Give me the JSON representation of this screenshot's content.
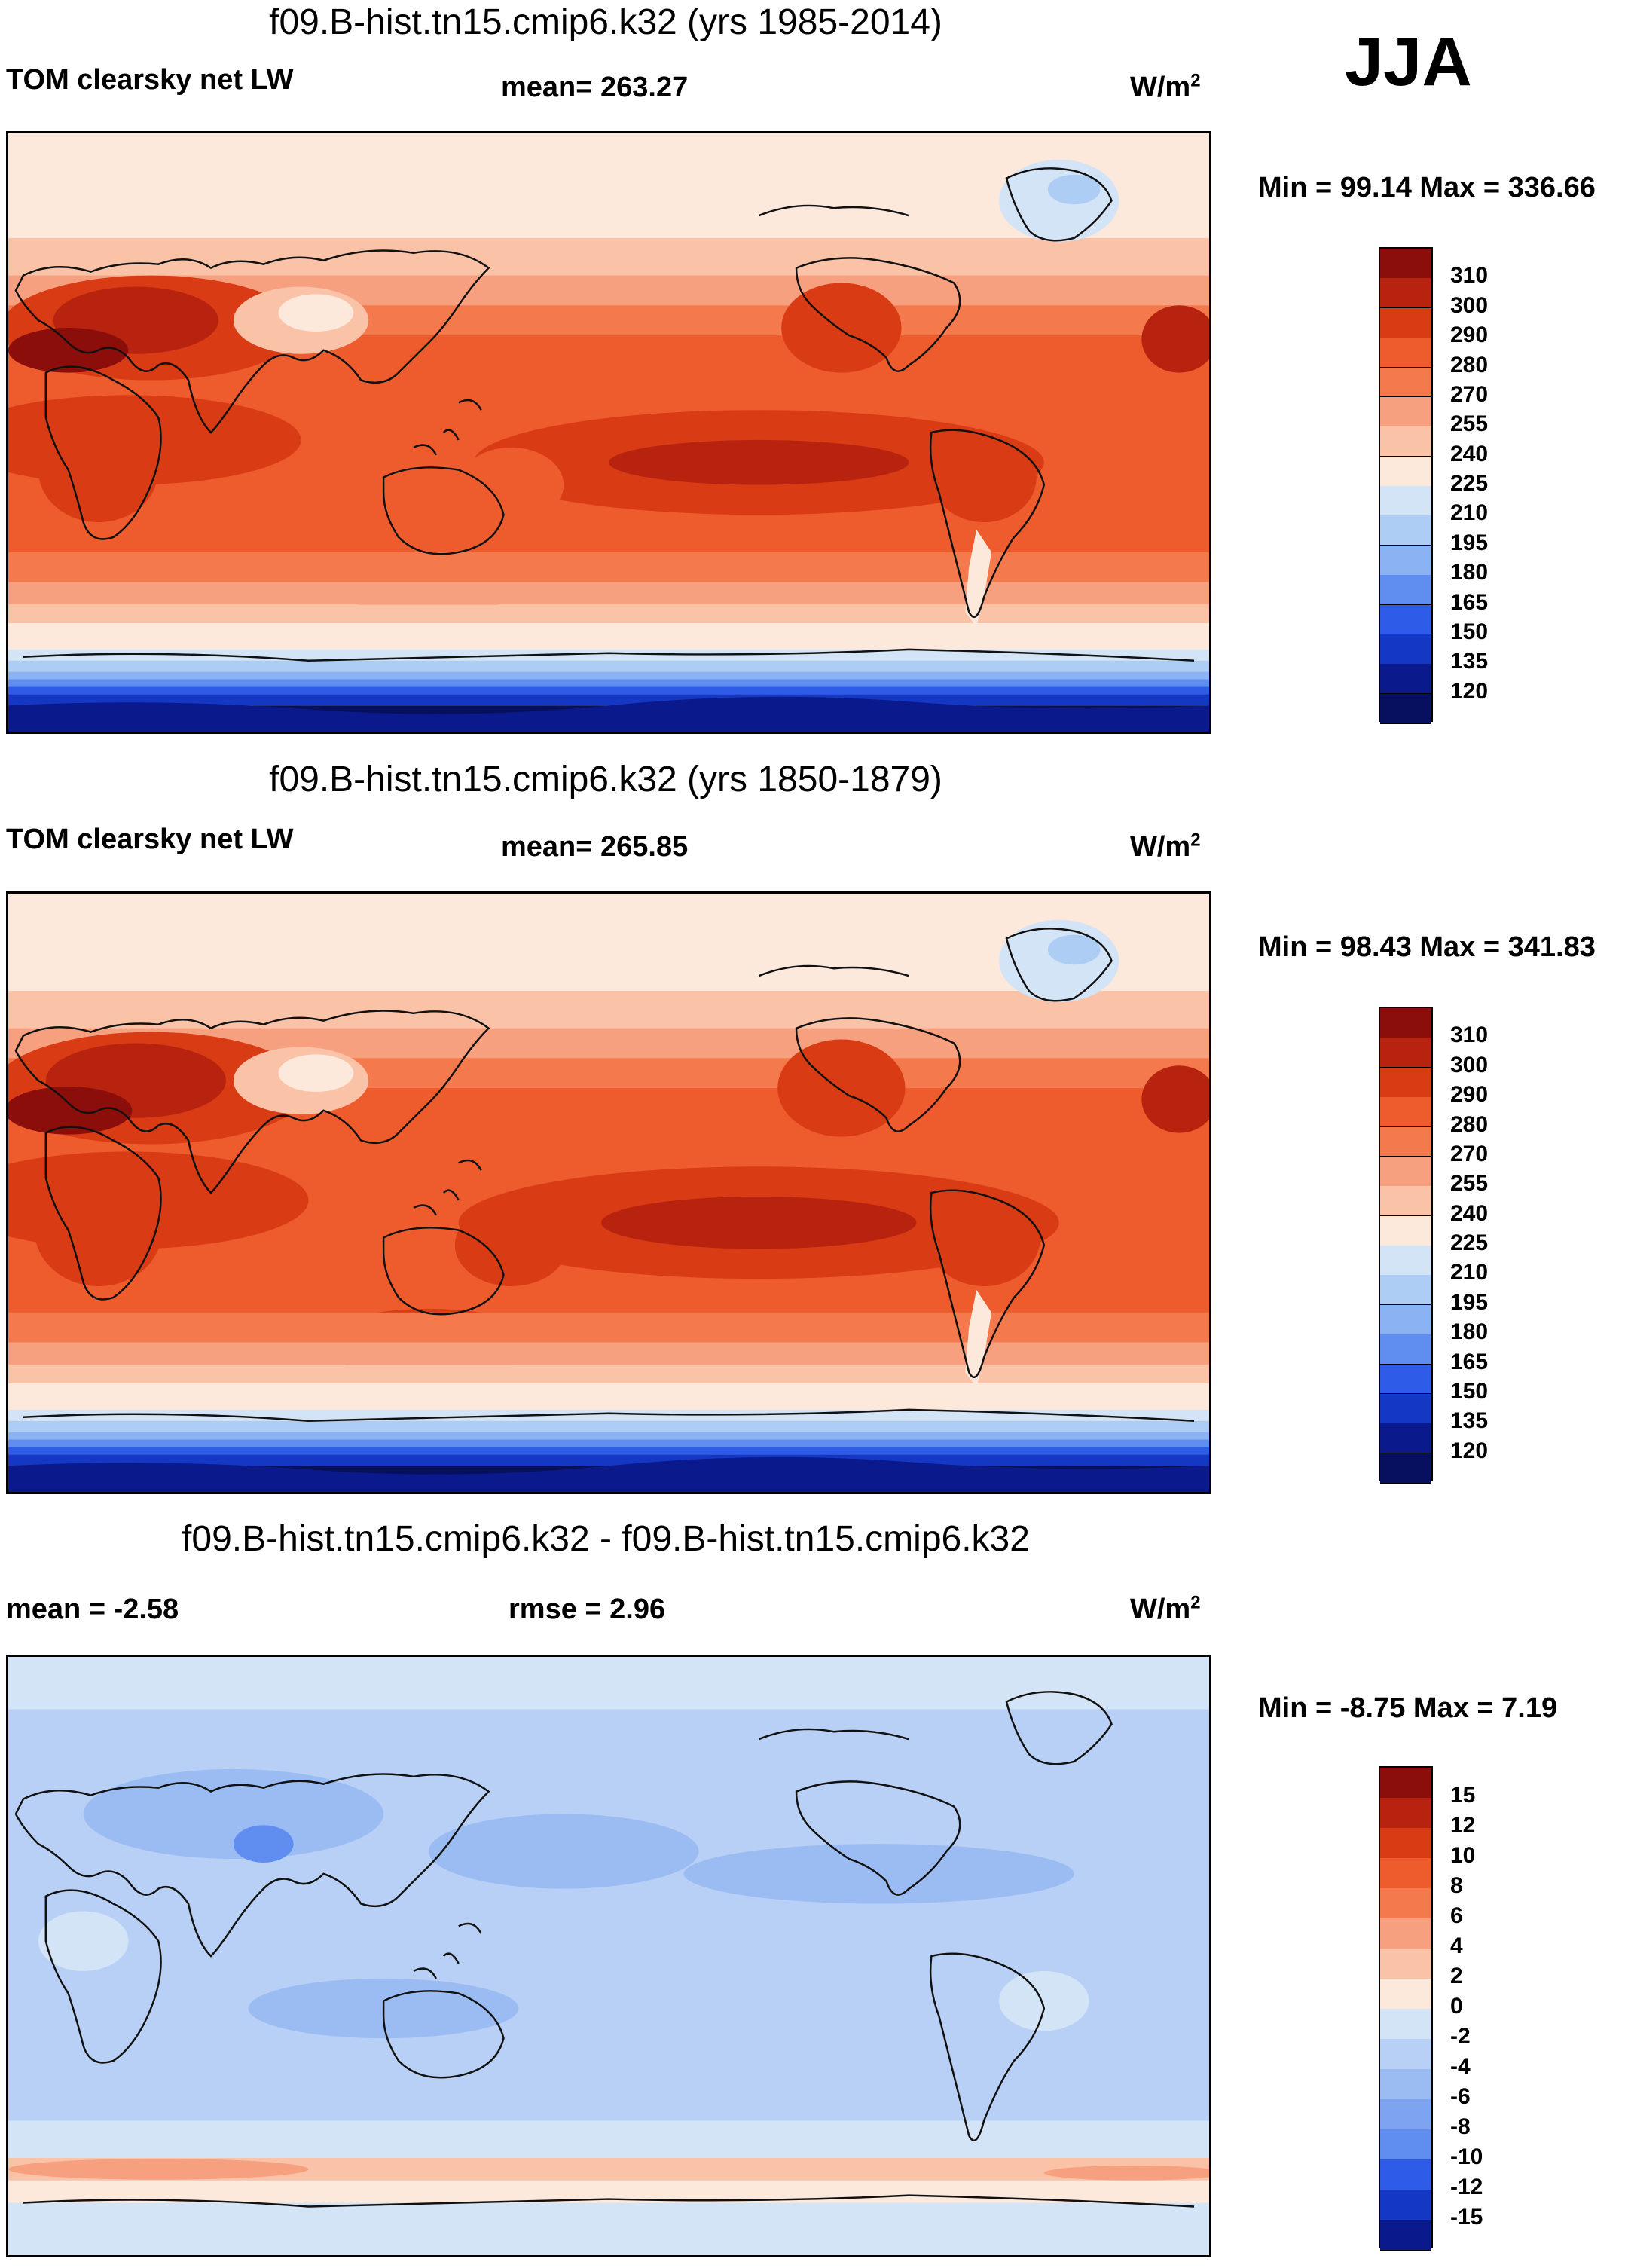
{
  "season": "JJA",
  "panels": [
    {
      "title": "f09.B-hist.tn15.cmip6.k32 (yrs 1985-2014)",
      "left_label": "TOM clearsky net LW",
      "center_label": "mean= 263.27",
      "units": "W/m",
      "units_exp": "2",
      "minmax": "Min =  99.14 Max = 336.66",
      "levels": [
        "310",
        "300",
        "290",
        "280",
        "270",
        "255",
        "240",
        "225",
        "210",
        "195",
        "180",
        "165",
        "150",
        "135",
        "120"
      ]
    },
    {
      "title": "f09.B-hist.tn15.cmip6.k32 (yrs 1850-1879)",
      "left_label": "TOM clearsky net LW",
      "center_label": "mean= 265.85",
      "units": "W/m",
      "units_exp": "2",
      "minmax": "Min =  98.43 Max = 341.83",
      "levels": [
        "310",
        "300",
        "290",
        "280",
        "270",
        "255",
        "240",
        "225",
        "210",
        "195",
        "180",
        "165",
        "150",
        "135",
        "120"
      ]
    },
    {
      "title": "f09.B-hist.tn15.cmip6.k32 - f09.B-hist.tn15.cmip6.k32",
      "left_label": "mean =  -2.58",
      "center_label": "rmse =   2.96",
      "units": "W/m",
      "units_exp": "2",
      "minmax": "Min =  -8.75 Max =   7.19",
      "levels": [
        "15",
        "12",
        "10",
        "8",
        "6",
        "4",
        "2",
        "0",
        "-2",
        "-4",
        "-6",
        "-8",
        "-10",
        "-12",
        "-15"
      ]
    }
  ],
  "colors": {
    "abs_scale": [
      "#8b0e0a",
      "#b8230f",
      "#d93b14",
      "#ee5c2e",
      "#f47a4e",
      "#f7a07f",
      "#fac3a8",
      "#fde8dc",
      "#d4e4f7",
      "#aecdf4",
      "#8bb2f2",
      "#5f8ef0",
      "#2e5ce8",
      "#1438c4",
      "#0a1a8c",
      "#07105c"
    ],
    "diff_scale": [
      "#8b0e0a",
      "#b8230f",
      "#d93b14",
      "#ee5c2e",
      "#f47a4e",
      "#f7a07f",
      "#fac3a8",
      "#fde8dc",
      "#d4e4f7",
      "#b8d0f5",
      "#9bbcf3",
      "#7ea4f1",
      "#5f8ef0",
      "#2e5ce8",
      "#1438c4",
      "#0a1a8c"
    ]
  }
}
